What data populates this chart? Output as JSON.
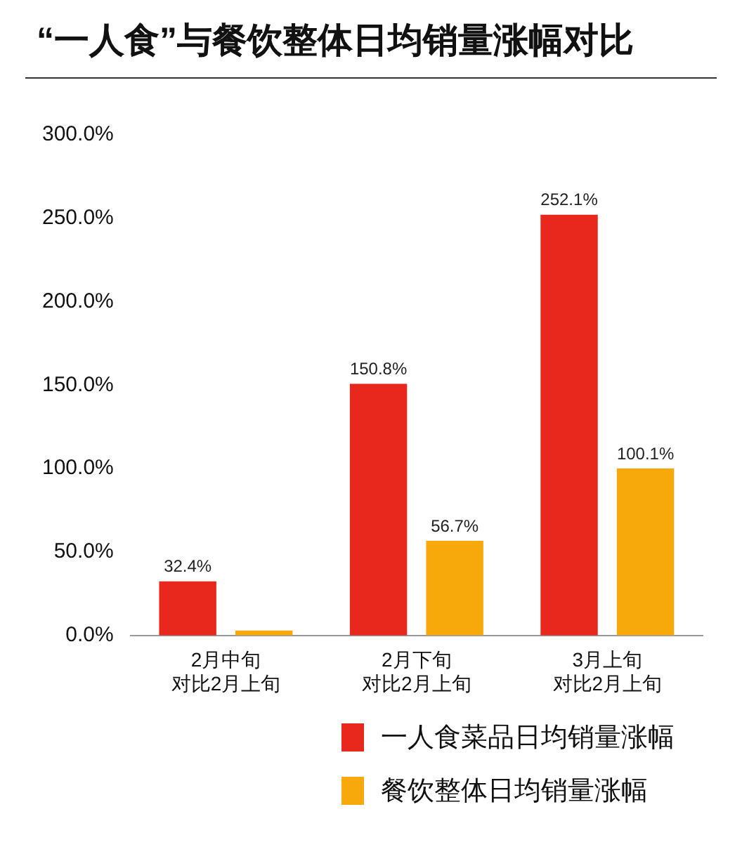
{
  "chart_data": {
    "type": "bar",
    "title": "“一人食”与餐饮整体日均销量涨幅对比",
    "categories": [
      "2月中旬对比2月上旬",
      "2月下旬对比2月上旬",
      "3月上旬对比2月上旬"
    ],
    "series": [
      {
        "name": "一人食菜品日均销量涨幅",
        "color": "#e8281c",
        "values": [
          32.4,
          150.8,
          252.1
        ],
        "value_labels": [
          "32.4%",
          "150.8%",
          "252.1%"
        ]
      },
      {
        "name": "餐饮整体日均销量涨幅",
        "color": "#f7a90c",
        "values": [
          3,
          56.7,
          100.1
        ],
        "value_labels": [
          null,
          "56.7%",
          "100.1%"
        ]
      }
    ],
    "ylim": [
      0,
      300
    ],
    "yticks": [
      {
        "value": 0,
        "label": "0.0%"
      },
      {
        "value": 50,
        "label": "50.0%"
      },
      {
        "value": 100,
        "label": "100.0%"
      },
      {
        "value": 150,
        "label": "150.0%"
      },
      {
        "value": 200,
        "label": "200.0%"
      },
      {
        "value": 250,
        "label": "250.0%"
      },
      {
        "value": 300,
        "label": "300.0%"
      }
    ],
    "grid": false,
    "legend": "bottom right"
  }
}
